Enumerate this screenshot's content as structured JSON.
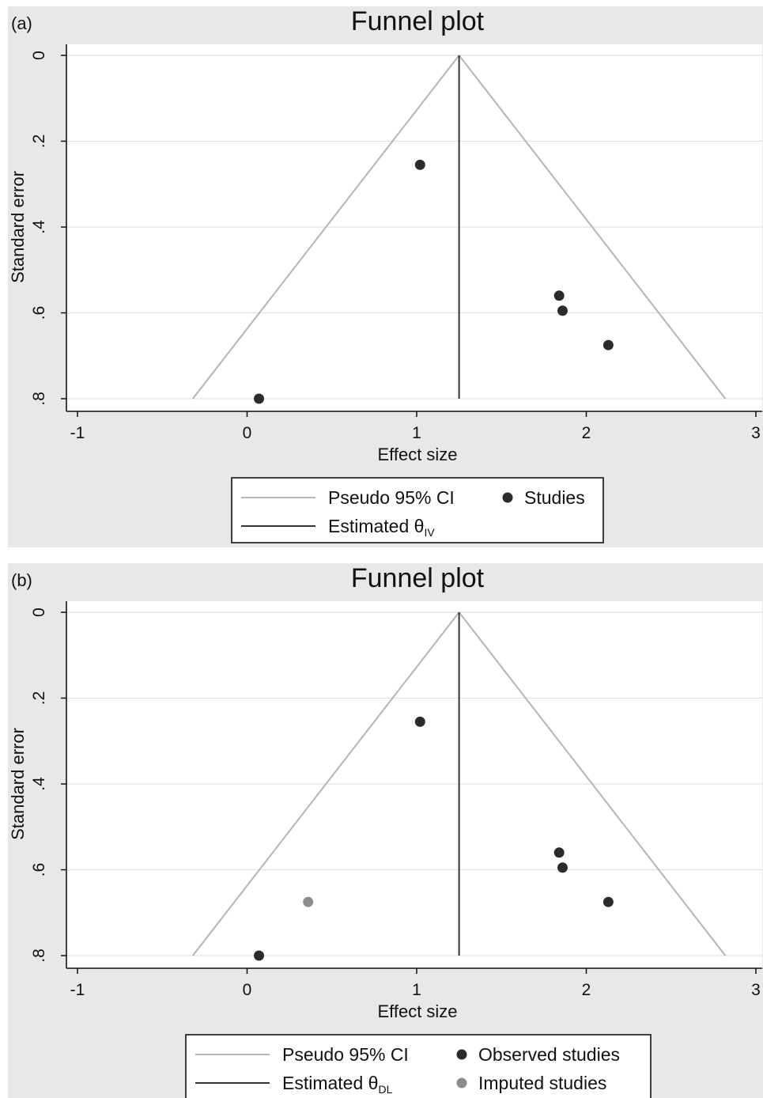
{
  "chart_data": [
    {
      "type": "scatter",
      "panel_label": "(a)",
      "title": "Funnel plot",
      "xlabel": "Effect size",
      "ylabel": "Standard error",
      "xlim": [
        -1,
        3
      ],
      "ylim": [
        0,
        0.8
      ],
      "y_reversed": true,
      "xticks": [
        "-1",
        "0",
        "1",
        "2",
        "3"
      ],
      "yticks": [
        "0",
        ".2",
        ".4",
        ".6",
        ".8"
      ],
      "grid": true,
      "funnel": {
        "center": 1.25,
        "apex_se": 0,
        "base_se": 0.8,
        "left_at_base": -0.32,
        "right_at_base": 2.82
      },
      "series": [
        {
          "name": "Studies",
          "color": "#2b2b2b",
          "points": [
            {
              "x": 1.02,
              "y": 0.255
            },
            {
              "x": 1.84,
              "y": 0.56
            },
            {
              "x": 1.86,
              "y": 0.595
            },
            {
              "x": 2.13,
              "y": 0.675
            },
            {
              "x": 0.07,
              "y": 0.8
            }
          ]
        }
      ],
      "legend": {
        "position": "bottom",
        "items": [
          {
            "label": "Pseudo 95% CI",
            "kind": "line",
            "color": "#b5b5b5"
          },
          {
            "label": "Studies",
            "kind": "marker",
            "color": "#2b2b2b"
          },
          {
            "label": "Estimated θ",
            "sub": "IV",
            "kind": "line",
            "color": "#333333"
          }
        ]
      }
    },
    {
      "type": "scatter",
      "panel_label": "(b)",
      "title": "Funnel plot",
      "xlabel": "Effect size",
      "ylabel": "Standard error",
      "xlim": [
        -1,
        3
      ],
      "ylim": [
        0,
        0.8
      ],
      "y_reversed": true,
      "xticks": [
        "-1",
        "0",
        "1",
        "2",
        "3"
      ],
      "yticks": [
        "0",
        ".2",
        ".4",
        ".6",
        ".8"
      ],
      "grid": true,
      "funnel": {
        "center": 1.25,
        "apex_se": 0,
        "base_se": 0.8,
        "left_at_base": -0.32,
        "right_at_base": 2.82
      },
      "series": [
        {
          "name": "Observed studies",
          "color": "#2b2b2b",
          "points": [
            {
              "x": 1.02,
              "y": 0.255
            },
            {
              "x": 1.84,
              "y": 0.56
            },
            {
              "x": 1.86,
              "y": 0.595
            },
            {
              "x": 2.13,
              "y": 0.675
            },
            {
              "x": 0.07,
              "y": 0.8
            }
          ]
        },
        {
          "name": "Imputed studies",
          "color": "#8c8c8c",
          "points": [
            {
              "x": 0.36,
              "y": 0.675
            }
          ]
        }
      ],
      "legend": {
        "position": "bottom",
        "items": [
          {
            "label": "Pseudo 95% CI",
            "kind": "line",
            "color": "#b5b5b5"
          },
          {
            "label": "Observed studies",
            "kind": "marker",
            "color": "#2b2b2b"
          },
          {
            "label": "Estimated θ",
            "sub": "DL",
            "kind": "line",
            "color": "#333333"
          },
          {
            "label": "Imputed studies",
            "kind": "marker",
            "color": "#8c8c8c"
          }
        ]
      }
    }
  ]
}
